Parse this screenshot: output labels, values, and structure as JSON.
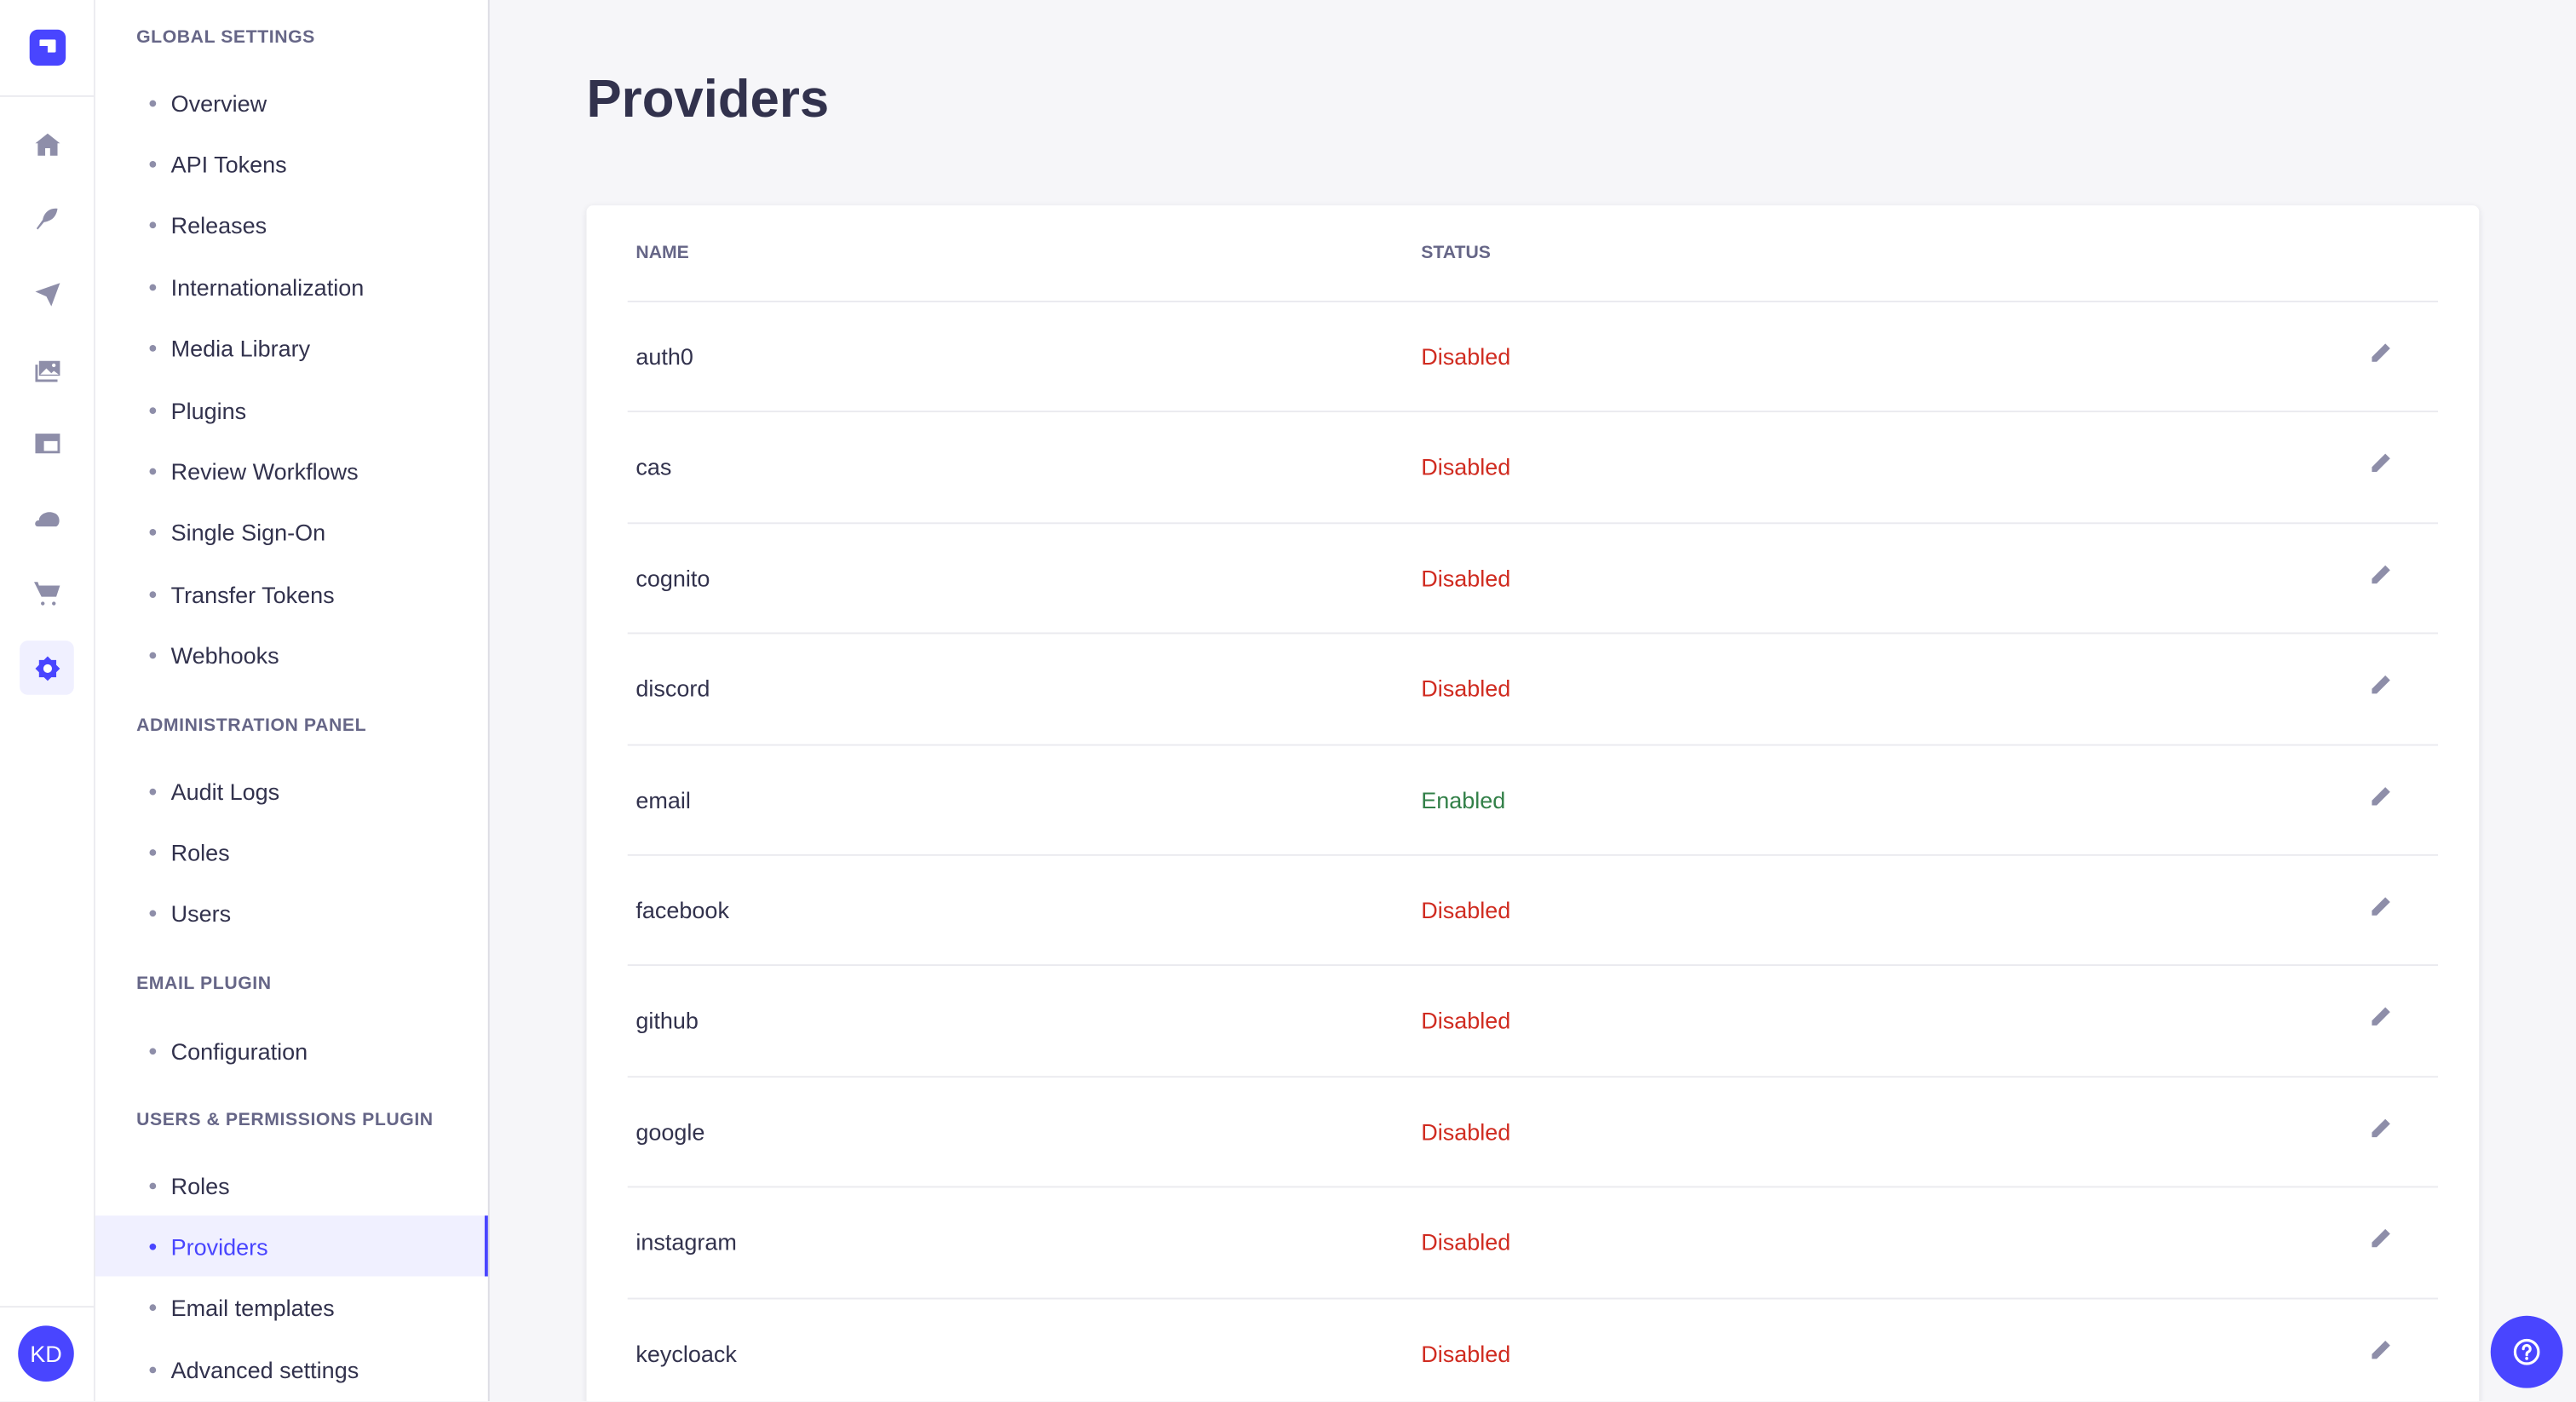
{
  "colors": {
    "accent": "#4945ff",
    "enabled": "#328048",
    "disabled": "#d02b20"
  },
  "rail": {
    "icons": [
      "home-icon",
      "content-manager-feather-icon",
      "deploy-paper-plane-icon",
      "media-library-icon",
      "content-type-builder-layout-icon",
      "cloud-icon",
      "marketplace-cart-icon",
      "settings-gear-icon"
    ],
    "active_index": 7,
    "avatar_initials": "KD"
  },
  "subnav": {
    "sections": [
      {
        "title": "Global Settings",
        "items": [
          "Overview",
          "API Tokens",
          "Releases",
          "Internationalization",
          "Media Library",
          "Plugins",
          "Review Workflows",
          "Single Sign-On",
          "Transfer Tokens",
          "Webhooks"
        ]
      },
      {
        "title": "Administration Panel",
        "items": [
          "Audit Logs",
          "Roles",
          "Users"
        ]
      },
      {
        "title": "Email Plugin",
        "items": [
          "Configuration"
        ]
      },
      {
        "title": "Users & Permissions Plugin",
        "items": [
          "Roles",
          "Providers",
          "Email templates",
          "Advanced settings"
        ]
      }
    ],
    "active": "Providers"
  },
  "page": {
    "title": "Providers"
  },
  "table": {
    "headers": {
      "name": "NAME",
      "status": "STATUS"
    },
    "rows": [
      {
        "name": "auth0",
        "status": "Disabled"
      },
      {
        "name": "cas",
        "status": "Disabled"
      },
      {
        "name": "cognito",
        "status": "Disabled"
      },
      {
        "name": "discord",
        "status": "Disabled"
      },
      {
        "name": "email",
        "status": "Enabled"
      },
      {
        "name": "facebook",
        "status": "Disabled"
      },
      {
        "name": "github",
        "status": "Disabled"
      },
      {
        "name": "google",
        "status": "Disabled"
      },
      {
        "name": "instagram",
        "status": "Disabled"
      },
      {
        "name": "keycloack",
        "status": "Disabled"
      }
    ]
  },
  "help": {
    "icon": "question-circle-icon"
  }
}
